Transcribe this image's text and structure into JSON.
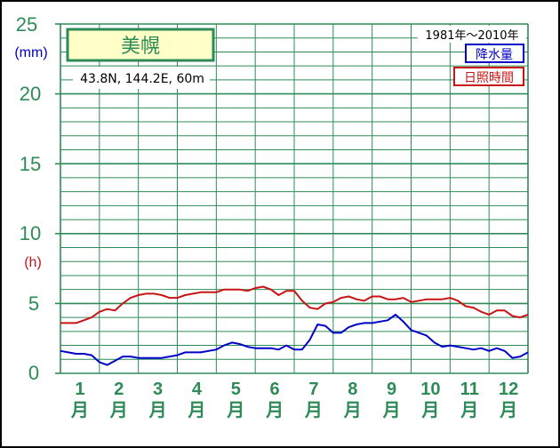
{
  "chart_data": {
    "type": "line",
    "station": "美幌",
    "location": "43.8N,  144.2E,  60m",
    "period": "1981年〜2010年",
    "ylabel_left": "(mm)",
    "ylabel_right": "(h)",
    "y_ticks": [
      "25",
      "20",
      "15",
      "10",
      "5",
      "0"
    ],
    "ylim": [
      0,
      25
    ],
    "x_categories": [
      "1",
      "2",
      "3",
      "4",
      "5",
      "6",
      "7",
      "8",
      "9",
      "10",
      "11",
      "12"
    ],
    "month_suffix": "月",
    "grid": true,
    "legend_position": "top-right",
    "series": [
      {
        "name": "降水量",
        "color": "#0000c8",
        "x": [
          0.0,
          0.2,
          0.4,
          0.6,
          0.8,
          1.0,
          1.2,
          1.4,
          1.6,
          1.8,
          2.0,
          2.2,
          2.4,
          2.6,
          2.8,
          3.0,
          3.2,
          3.4,
          3.6,
          3.8,
          4.0,
          4.2,
          4.4,
          4.6,
          4.8,
          5.0,
          5.2,
          5.4,
          5.6,
          5.8,
          6.0,
          6.2,
          6.4,
          6.6,
          6.8,
          7.0,
          7.2,
          7.4,
          7.6,
          7.8,
          8.0,
          8.2,
          8.4,
          8.6,
          8.8,
          9.0,
          9.2,
          9.4,
          9.6,
          9.8,
          10.0,
          10.2,
          10.4,
          10.6,
          10.8,
          11.0,
          11.2,
          11.4,
          11.6,
          11.8,
          12.0
        ],
        "values": [
          1.6,
          1.5,
          1.4,
          1.4,
          1.3,
          0.8,
          0.6,
          0.9,
          1.2,
          1.2,
          1.1,
          1.1,
          1.1,
          1.1,
          1.2,
          1.3,
          1.5,
          1.5,
          1.5,
          1.6,
          1.7,
          2.0,
          2.2,
          2.1,
          1.9,
          1.8,
          1.8,
          1.8,
          1.7,
          2.0,
          1.7,
          1.7,
          2.4,
          3.5,
          3.4,
          2.9,
          2.9,
          3.3,
          3.5,
          3.6,
          3.6,
          3.7,
          3.8,
          4.2,
          3.7,
          3.1,
          2.9,
          2.7,
          2.2,
          1.9,
          2.0,
          1.9,
          1.8,
          1.7,
          1.8,
          1.6,
          1.8,
          1.6,
          1.1,
          1.2,
          1.5
        ]
      },
      {
        "name": "日照時間",
        "color": "#c81414",
        "x": [
          0.0,
          0.2,
          0.4,
          0.6,
          0.8,
          1.0,
          1.2,
          1.4,
          1.6,
          1.8,
          2.0,
          2.2,
          2.4,
          2.6,
          2.8,
          3.0,
          3.2,
          3.4,
          3.6,
          3.8,
          4.0,
          4.2,
          4.4,
          4.6,
          4.8,
          5.0,
          5.2,
          5.4,
          5.6,
          5.8,
          6.0,
          6.2,
          6.4,
          6.6,
          6.8,
          7.0,
          7.2,
          7.4,
          7.6,
          7.8,
          8.0,
          8.2,
          8.4,
          8.6,
          8.8,
          9.0,
          9.2,
          9.4,
          9.6,
          9.8,
          10.0,
          10.2,
          10.4,
          10.6,
          10.8,
          11.0,
          11.2,
          11.4,
          11.6,
          11.8,
          12.0
        ],
        "values": [
          3.6,
          3.6,
          3.6,
          3.8,
          4.0,
          4.4,
          4.6,
          4.5,
          5.0,
          5.4,
          5.6,
          5.7,
          5.7,
          5.6,
          5.4,
          5.4,
          5.6,
          5.7,
          5.8,
          5.8,
          5.8,
          6.0,
          6.0,
          6.0,
          5.9,
          6.1,
          6.2,
          6.0,
          5.6,
          5.9,
          5.9,
          5.2,
          4.7,
          4.6,
          5.0,
          5.1,
          5.4,
          5.5,
          5.3,
          5.2,
          5.5,
          5.5,
          5.3,
          5.3,
          5.4,
          5.1,
          5.2,
          5.3,
          5.3,
          5.3,
          5.4,
          5.2,
          4.8,
          4.7,
          4.4,
          4.2,
          4.5,
          4.5,
          4.1,
          4.0,
          4.2
        ]
      }
    ]
  },
  "colors": {
    "grid": "#2e8b57",
    "axis_text": "#2e8b57",
    "station_box_fill": "#ffffc8",
    "station_box_border": "#2e8b57",
    "unit_mm": "#0000c8",
    "unit_h": "#c81414",
    "precip_line": "#0000c8",
    "sunshine_line": "#c81414"
  }
}
